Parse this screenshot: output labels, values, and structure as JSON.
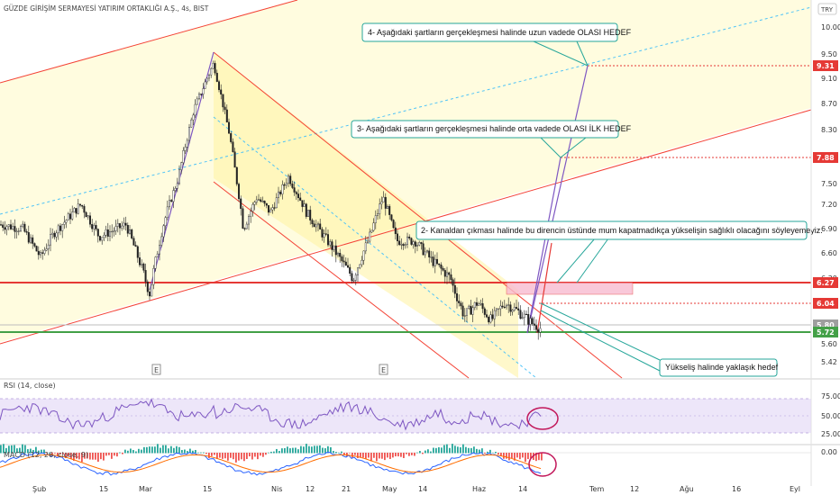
{
  "header": {
    "symbol_title": "GÜZDE GİRİŞİM SERMAYESİ YATIRIM ORTAKLIĞI A.Ş., 4s, BIST",
    "currency": "TRY"
  },
  "price_axis": {
    "ticks": [
      "10.00",
      "9.50",
      "9.10",
      "8.70",
      "8.30",
      "7.90",
      "7.50",
      "7.20",
      "6.90",
      "6.60",
      "6.30",
      "6.04",
      "5.80",
      "5.60",
      "5.42"
    ],
    "markers": [
      {
        "label": "9.31",
        "color": "#e53935"
      },
      {
        "label": "7.88",
        "color": "#e53935"
      },
      {
        "label": "6.27",
        "color": "#e53935"
      },
      {
        "label": "6.04",
        "color": "#e53935"
      },
      {
        "label": "5.80",
        "color": "#9e9e9e"
      },
      {
        "label": "5.72",
        "color": "#43a047"
      }
    ]
  },
  "date_axis": {
    "ticks": [
      "Şub",
      "15",
      "Mar",
      "15",
      "Nis",
      "12",
      "21",
      "May",
      "14",
      "Haz",
      "14",
      "Tem",
      "12",
      "Ağu",
      "16",
      "Eyl"
    ]
  },
  "earnings_marks": [
    "E",
    "E"
  ],
  "annotations": {
    "note4": "4- Aşağıdaki şartların gerçekleşmesi halinde uzun vadede OLASI HEDEF",
    "note3": "3- Aşağıdaki şartların gerçekleşmesi halinde orta vadede OLASI İLK HEDEF",
    "note2": "2- Kanaldan çıkması halinde bu direncin üstünde mum kapatmadıkça yükselişin sağlıklı olacağını söyleyemeyiz.",
    "note1": "Yükseliş halinde yaklaşık hedef"
  },
  "rsi_panel": {
    "label": "RSI (14, close)",
    "ticks": [
      "75.00",
      "50.00",
      "25.00"
    ]
  },
  "macd_panel": {
    "label": "MACD (12, 26, close, 9)",
    "ticks": [
      "0.00"
    ]
  },
  "chart_data": {
    "type": "line",
    "title": "GÜZDE GİRİŞİM SERMAYESİ YATIRIM ORTAKLIĞI A.Ş., 4s, BIST",
    "x": [
      "Şub",
      "15",
      "Mar",
      "15",
      "Nis",
      "12",
      "21",
      "May",
      "14",
      "Haz",
      "14"
    ],
    "series": [
      {
        "values": [
          6.95,
          6.85,
          6.45,
          9.35,
          8.1,
          7.4,
          6.9,
          6.7,
          6.2,
          5.95,
          5.78
        ]
      }
    ],
    "horizontal_levels": {
      "resistance": 6.27,
      "support": 5.72,
      "targets": [
        6.04,
        7.88,
        9.31
      ]
    },
    "ylim": [
      5.35,
      10.2
    ],
    "y_scale": "log",
    "rsi_range": [
      0,
      100
    ],
    "colors": {
      "up": "#26a69a",
      "down": "#ef5350",
      "resistance": "#e53935",
      "support": "#43a047",
      "channel": "#ffeb3b"
    }
  }
}
